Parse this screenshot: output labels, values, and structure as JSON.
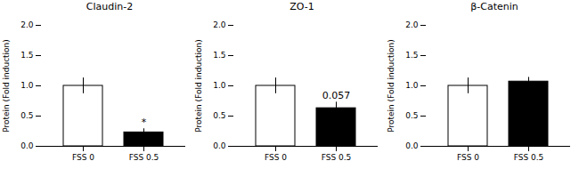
{
  "chart_data": [
    {
      "type": "bar",
      "title": "Claudin-2",
      "categories": [
        "FSS 0",
        "FSS 0.5"
      ],
      "values": [
        1.0,
        0.23
      ],
      "errors": [
        0.13,
        0.06
      ],
      "colors": [
        "white",
        "black"
      ],
      "ylabel": "Protein (Fold induction)",
      "ylim": [
        0,
        2.0
      ],
      "yticks": [
        {
          "value": 0.0,
          "label": "0.0"
        },
        0.5,
        {
          "value": 1.0,
          "label": "1.0"
        },
        1.5,
        {
          "value": 2.0,
          "label": "2.0"
        }
      ],
      "grid": false,
      "annotations": [
        {
          "text": "*",
          "category": "FSS 0.5"
        }
      ]
    },
    {
      "type": "bar",
      "title": "ZO-1",
      "categories": [
        "FSS 0",
        "FSS 0.5"
      ],
      "values": [
        1.0,
        0.63
      ],
      "errors": [
        0.13,
        0.1
      ],
      "colors": [
        "white",
        "black"
      ],
      "ylabel": "Protein (Fold induction)",
      "ylim": [
        0,
        2.0
      ],
      "yticks": [
        {
          "value": 0.0,
          "label": "0.0"
        },
        0.5,
        {
          "value": 1.0,
          "label": "1.0"
        },
        1.5,
        {
          "value": 2.0,
          "label": "2.0"
        }
      ],
      "grid": false,
      "annotations": [
        {
          "text": "0.057",
          "category": "FSS 0.5"
        }
      ]
    },
    {
      "type": "bar",
      "title": "β-Catenin",
      "categories": [
        "FSS 0",
        "FSS 0.5"
      ],
      "values": [
        1.0,
        1.07
      ],
      "errors": [
        0.13,
        0.07
      ],
      "colors": [
        "white",
        "black"
      ],
      "ylabel": "Protein (Fold induction)",
      "ylim": [
        0,
        2.0
      ],
      "yticks": [
        {
          "value": 0.0,
          "label": "0.0"
        },
        0.5,
        {
          "value": 1.0,
          "label": "1.0"
        },
        1.5,
        {
          "value": 2.0,
          "label": "2.0"
        }
      ],
      "grid": false,
      "annotations": []
    }
  ]
}
